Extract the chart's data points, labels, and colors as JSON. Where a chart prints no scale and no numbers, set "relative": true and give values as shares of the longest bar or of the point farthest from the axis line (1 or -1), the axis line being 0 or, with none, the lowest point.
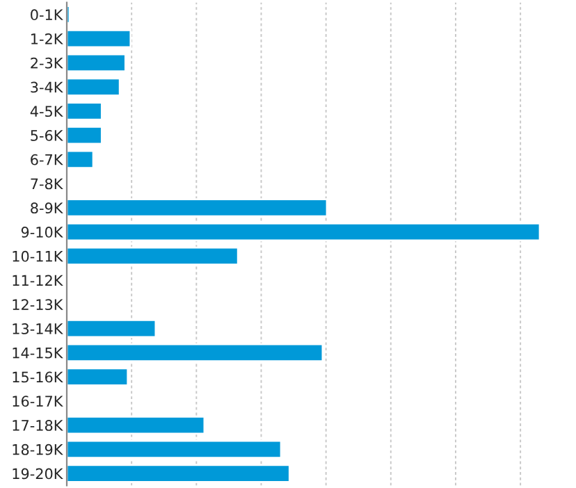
{
  "chart_data": {
    "type": "bar",
    "orientation": "horizontal",
    "relative": true,
    "grid": "x",
    "categories": [
      "0-1K",
      "1-2K",
      "2-3K",
      "3-4K",
      "4-5K",
      "5-6K",
      "6-7K",
      "7-8K",
      "8-9K",
      "9-10K",
      "10-11K",
      "11-12K",
      "12-13K",
      "13-14K",
      "14-15K",
      "15-16K",
      "16-17K",
      "17-18K",
      "18-19K",
      "19-20K"
    ],
    "values": [
      0.006,
      0.135,
      0.124,
      0.112,
      0.074,
      0.074,
      0.056,
      0,
      0.55,
      1,
      0.362,
      0,
      0,
      0.188,
      0.541,
      0.129,
      0,
      0.291,
      0.453,
      0.471
    ],
    "color": "#0099d8"
  }
}
